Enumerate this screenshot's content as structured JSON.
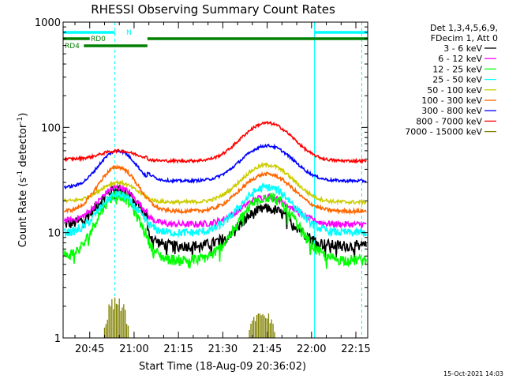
{
  "chart_data": {
    "type": "line",
    "title": "RHESSI Observing Summary Count Rates",
    "xlabel": "Start Time (18-Aug-09 20:36:02)",
    "ylabel_main": "Count Rate (s",
    "ylabel_sup1": "-1",
    "ylabel_mid": " detector",
    "ylabel_sup2": "-1",
    "ylabel_end": ")",
    "footer": "15-Oct-2021 14:03",
    "y_scale": "log",
    "ylim": [
      1,
      1000
    ],
    "y_ticks": [
      {
        "value": 1,
        "label": "1"
      },
      {
        "value": 10,
        "label": "10"
      },
      {
        "value": 100,
        "label": "100"
      },
      {
        "value": 1000,
        "label": "1000"
      }
    ],
    "xlim_min": [
      36.0,
      139.0
    ],
    "x_ticks": [
      {
        "min": 45,
        "label": "20:45"
      },
      {
        "min": 60,
        "label": "21:00"
      },
      {
        "min": 75,
        "label": "21:15"
      },
      {
        "min": 90,
        "label": "21:30"
      },
      {
        "min": 105,
        "label": "21:45"
      },
      {
        "min": 120,
        "label": "22:00"
      },
      {
        "min": 135,
        "label": "22:15"
      }
    ],
    "legend_header": [
      "Det 1,3,4,5,6,9,",
      "FDecim 1, Att 0"
    ],
    "legend_placement": "right",
    "series": [
      {
        "name": "3 - 6 keV",
        "color": "#000000",
        "base": 12.0,
        "peak1": 26.0,
        "peak2": 17.0,
        "end": 7.5,
        "noise": 0.12
      },
      {
        "name": "6 - 12 keV",
        "color": "#ff00ff",
        "base": 13.0,
        "peak1": 27.0,
        "peak2": 22.0,
        "end": 12.0,
        "noise": 0.07
      },
      {
        "name": "12 - 25 keV",
        "color": "#00ff00",
        "base": 6.0,
        "peak1": 23.0,
        "peak2": 22.0,
        "end": 5.5,
        "noise": 0.12
      },
      {
        "name": "25 - 50 keV",
        "color": "#00ffff",
        "base": 10.0,
        "peak1": 23.0,
        "peak2": 27.0,
        "end": 10.0,
        "noise": 0.09
      },
      {
        "name": "50 - 100 keV",
        "color": "#cccc00",
        "base": 20.0,
        "peak1": 30.0,
        "peak2": 44.0,
        "end": 19.5,
        "noise": 0.04
      },
      {
        "name": "100 - 300 keV",
        "color": "#ff6600",
        "base": 16.0,
        "peak1": 42.0,
        "peak2": 36.0,
        "end": 16.0,
        "noise": 0.04
      },
      {
        "name": "300 - 800 keV",
        "color": "#0000ff",
        "base": 27.0,
        "peak1": 60.0,
        "peak2": 67.0,
        "end": 31.0,
        "noise": 0.03
      },
      {
        "name": "800 - 7000 keV",
        "color": "#ff0000",
        "base": 50.0,
        "peak1": 60.0,
        "peak2": 110.0,
        "end": 48.0,
        "noise": 0.03
      },
      {
        "name": "7000 - 15000 keV",
        "color": "#808000",
        "base": 1.0,
        "peak1": 2.6,
        "peak2": 2.0,
        "end": 1.0,
        "noise": 0.0
      }
    ],
    "status_bars": [
      {
        "label": "N",
        "color": "#00ffff",
        "row": 0,
        "segments": [
          [
            36.0,
            53.5
          ],
          [
            121.0,
            139.0
          ]
        ]
      },
      {
        "label": "RD0",
        "color": "#008000",
        "row": 1,
        "segments": [
          [
            36.0,
            45.0
          ],
          [
            64.5,
            139.0
          ]
        ]
      },
      {
        "label": "RD4",
        "color": "#008000",
        "row": 2,
        "segments": [
          [
            43.0,
            64.5
          ]
        ]
      }
    ],
    "markers": [
      {
        "style": "dashed",
        "color": "#00ffff",
        "min": 53.5
      },
      {
        "style": "solid",
        "color": "#00ffff",
        "min": 121.0
      },
      {
        "style": "dashed",
        "color": "#00ffff",
        "min": 137.0
      }
    ]
  }
}
